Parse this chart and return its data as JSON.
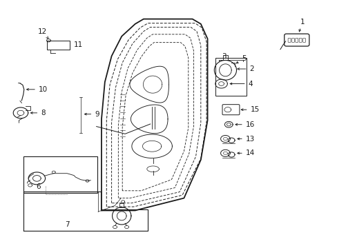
{
  "bg_color": "#ffffff",
  "line_color": "#1a1a1a",
  "fig_width": 4.89,
  "fig_height": 3.6,
  "dpi": 100,
  "door": {
    "outer": {
      "x": [
        0.3,
        0.3,
        0.31,
        0.33,
        0.36,
        0.4,
        0.425,
        0.57,
        0.595,
        0.615,
        0.615,
        0.595,
        0.545,
        0.4,
        0.335,
        0.305,
        0.3
      ],
      "y": [
        0.15,
        0.52,
        0.67,
        0.775,
        0.855,
        0.905,
        0.925,
        0.925,
        0.905,
        0.845,
        0.515,
        0.355,
        0.2,
        0.15,
        0.15,
        0.15,
        0.15
      ]
    },
    "mid1": {
      "x": [
        0.315,
        0.315,
        0.325,
        0.348,
        0.38,
        0.415,
        0.438,
        0.578,
        0.598,
        0.612,
        0.612,
        0.595,
        0.54,
        0.395,
        0.34,
        0.32,
        0.315
      ],
      "y": [
        0.165,
        0.515,
        0.66,
        0.762,
        0.84,
        0.89,
        0.908,
        0.908,
        0.89,
        0.832,
        0.51,
        0.36,
        0.212,
        0.165,
        0.165,
        0.165,
        0.165
      ]
    },
    "mid2": {
      "x": [
        0.33,
        0.33,
        0.342,
        0.362,
        0.392,
        0.425,
        0.445,
        0.565,
        0.583,
        0.595,
        0.595,
        0.58,
        0.532,
        0.39,
        0.345,
        0.335,
        0.33
      ],
      "y": [
        0.18,
        0.508,
        0.648,
        0.748,
        0.825,
        0.875,
        0.892,
        0.892,
        0.875,
        0.818,
        0.504,
        0.368,
        0.225,
        0.18,
        0.18,
        0.18,
        0.18
      ]
    },
    "inner": {
      "x": [
        0.35,
        0.35,
        0.36,
        0.378,
        0.406,
        0.435,
        0.452,
        0.548,
        0.564,
        0.574,
        0.574,
        0.56,
        0.518,
        0.384,
        0.358,
        0.352,
        0.35
      ],
      "y": [
        0.2,
        0.495,
        0.63,
        0.725,
        0.8,
        0.848,
        0.863,
        0.863,
        0.848,
        0.795,
        0.492,
        0.38,
        0.242,
        0.2,
        0.2,
        0.2,
        0.2
      ]
    }
  },
  "cutout": {
    "x": [
      0.362,
      0.362,
      0.372,
      0.392,
      0.418,
      0.442,
      0.456,
      0.535,
      0.548,
      0.558,
      0.558,
      0.545,
      0.508,
      0.418,
      0.378,
      0.365,
      0.362
    ],
    "y": [
      0.23,
      0.488,
      0.615,
      0.706,
      0.772,
      0.815,
      0.83,
      0.83,
      0.815,
      0.768,
      0.485,
      0.39,
      0.275,
      0.23,
      0.23,
      0.23,
      0.23
    ]
  },
  "label_font": 7.5,
  "arrow_props": {
    "lw": 0.7,
    "mutation_scale": 5
  }
}
